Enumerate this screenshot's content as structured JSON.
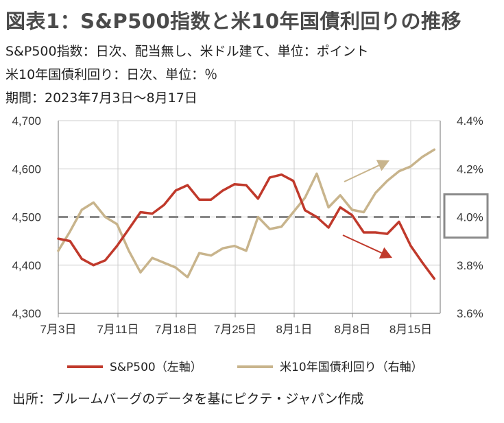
{
  "header": {
    "title": "図表1：S&P500指数と米10年国債利回りの推移",
    "line1": "S&P500指数：日次、配当無し、米ドル建て、単位：ポイント",
    "line2": "米10年国債利回り：日次、単位：％",
    "line3": "期間：2023年7月3日～8月17日"
  },
  "source": "出所：ブルームバーグのデータを基にピクテ・ジャパン作成",
  "colors": {
    "sp500": "#c0392b",
    "yield": "#c8b48c",
    "ref": "#888888",
    "box": "#8a8a8a",
    "axis": "#888888",
    "grid": "#cccccc"
  },
  "chart_data": {
    "type": "line",
    "x_ticks": [
      "7月3日",
      "7月11日",
      "7月18日",
      "7月25日",
      "8月1日",
      "8月8日",
      "8月15日"
    ],
    "left_ticks": [
      "4,700",
      "4,600",
      "4,500",
      "4,400",
      "4,300"
    ],
    "right_ticks": [
      "4.4%",
      "4.2%",
      "4.0%",
      "3.8%",
      "3.6%"
    ],
    "left_range": [
      4300,
      4700
    ],
    "right_range": [
      3.6,
      4.4
    ],
    "reference_line": {
      "axis": "right",
      "value": 4.0,
      "style": "dashed"
    },
    "highlight": {
      "axis": "right",
      "value": 4.0,
      "label": "4.0%"
    },
    "series": [
      {
        "name": "S&P500（左軸）",
        "axis": "left",
        "values": [
          4455,
          4450,
          4413,
          4400,
          4410,
          4440,
          4475,
          4510,
          4507,
          4525,
          4555,
          4566,
          4536,
          4536,
          4555,
          4568,
          4566,
          4538,
          4582,
          4588,
          4575,
          4514,
          4500,
          4478,
          4520,
          4504,
          4468,
          4468,
          4465,
          4490,
          4440,
          4405,
          4372
        ]
      },
      {
        "name": "米10年国債利回り（右軸）",
        "axis": "right",
        "values": [
          3.86,
          3.94,
          4.03,
          4.06,
          4.0,
          3.97,
          3.86,
          3.77,
          3.83,
          3.81,
          3.79,
          3.75,
          3.85,
          3.84,
          3.87,
          3.88,
          3.86,
          4.0,
          3.95,
          3.96,
          4.02,
          4.08,
          4.18,
          4.04,
          4.09,
          4.03,
          4.02,
          4.1,
          4.15,
          4.19,
          4.21,
          4.25,
          4.28
        ]
      }
    ],
    "annotations": [
      {
        "type": "arrow",
        "series": "米10年国債利回り（右軸）",
        "direction": "up"
      },
      {
        "type": "arrow",
        "series": "S&P500（左軸）",
        "direction": "down"
      }
    ]
  }
}
